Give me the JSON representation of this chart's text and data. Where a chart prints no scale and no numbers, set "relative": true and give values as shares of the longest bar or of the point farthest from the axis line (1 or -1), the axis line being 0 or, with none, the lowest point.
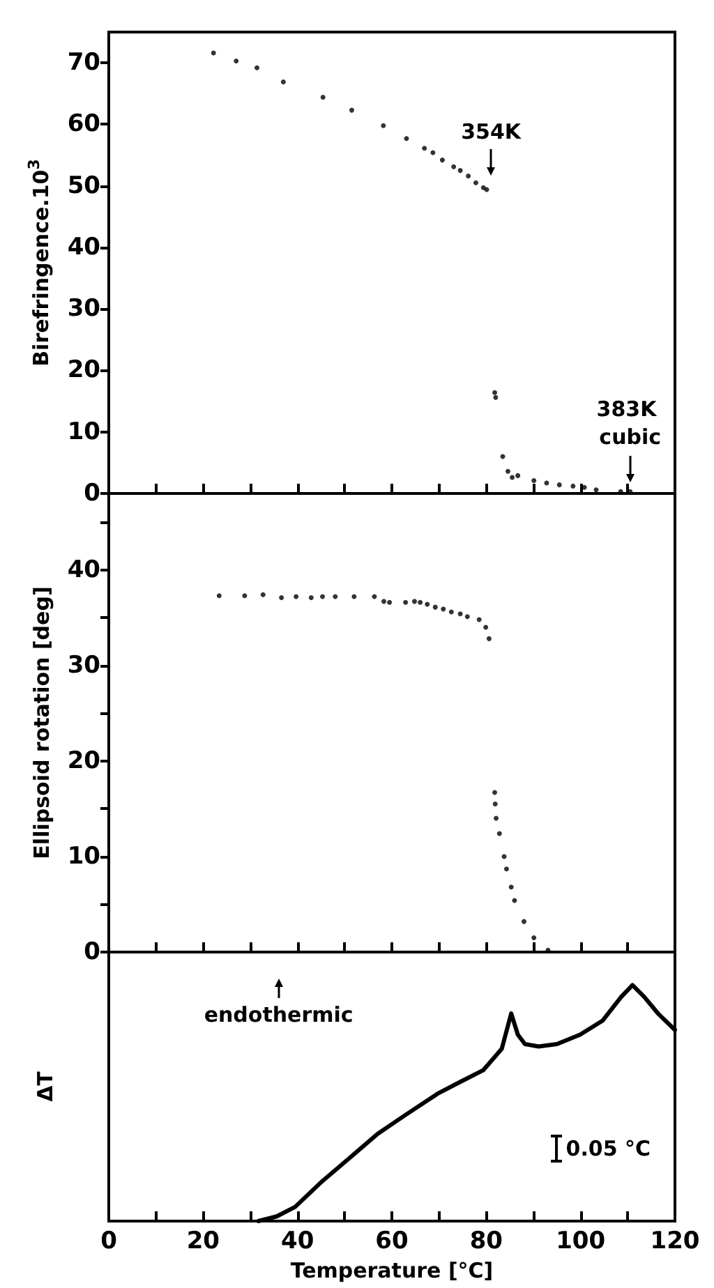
{
  "chart_data": [
    {
      "type": "scatter",
      "ylabel": "Birefringence.10$^{3}$",
      "marker": "circle",
      "grid": false,
      "tick_labels": "y",
      "xlim": [
        0,
        120
      ],
      "xticks": [
        0,
        10,
        20,
        30,
        40,
        50,
        60,
        70,
        80,
        90,
        100,
        110,
        120
      ],
      "ylim": [
        0,
        75
      ],
      "yticks": [
        0,
        10,
        20,
        30,
        40,
        50,
        60,
        70
      ],
      "x": [
        22.2,
        27,
        31.4,
        37,
        45.4,
        51.5,
        58.2,
        63.1,
        66.9,
        68.7,
        70.7,
        73.1,
        74.5,
        76.2,
        77.8,
        79.4,
        80.1,
        81.8,
        82,
        83.5,
        84.6,
        85.5,
        86.7,
        90.1,
        92.8,
        95.5,
        98.4,
        100.8,
        103.3,
        108.5,
        110.5
      ],
      "series": [
        {
          "color": "#000000",
          "values": [
            71.6,
            70.3,
            69.2,
            66.9,
            64.4,
            62.3,
            59.8,
            57.7,
            56.1,
            55.4,
            54.2,
            53.1,
            52.5,
            51.6,
            50.5,
            49.7,
            49.4,
            16.4,
            15.6,
            6.0,
            3.6,
            2.6,
            2.9,
            2.1,
            1.7,
            1.4,
            1.2,
            1.0,
            0.6,
            0.3,
            0.3
          ]
        }
      ],
      "annotations": [
        {
          "text": "354K",
          "x": 81,
          "y": 50
        },
        {
          "text": "383K cubic",
          "x": 110.5,
          "y": 0.3
        }
      ]
    },
    {
      "type": "scatter",
      "ylabel": "Ellipsoid rotation [deg]",
      "marker": "circle",
      "grid": false,
      "tick_labels": "y",
      "xlim": [
        0,
        120
      ],
      "xticks": [
        0,
        10,
        20,
        30,
        40,
        50,
        60,
        70,
        80,
        90,
        100,
        110,
        120
      ],
      "ylim": [
        0,
        48
      ],
      "yticks": [
        0,
        {
          "value": 5,
          "label": null
        },
        10,
        {
          "value": 15,
          "label": null
        },
        20,
        {
          "value": 25,
          "label": null
        },
        30,
        {
          "value": 35,
          "label": null
        },
        40,
        {
          "value": 45,
          "label": null
        }
      ],
      "x": [
        23.4,
        28.8,
        32.7,
        36.6,
        39.7,
        42.9,
        45.3,
        48,
        52,
        56.3,
        58.3,
        59.5,
        62.9,
        64.8,
        66,
        67.5,
        69.2,
        70.9,
        72.6,
        74.5,
        76,
        78.5,
        79.9,
        80.6,
        81.8,
        81.9,
        82.1,
        82.8,
        83.8,
        84.3,
        85.3,
        86,
        88,
        90.1,
        93.1
      ],
      "series": [
        {
          "color": "#000000",
          "values": [
            37.3,
            37.3,
            37.4,
            37.1,
            37.2,
            37.1,
            37.2,
            37.2,
            37.2,
            37.2,
            36.7,
            36.6,
            36.6,
            36.7,
            36.6,
            36.4,
            36.1,
            35.9,
            35.6,
            35.4,
            35.1,
            34.8,
            34,
            32.8,
            16.7,
            15.5,
            14,
            12.4,
            10,
            8.7,
            6.8,
            5.4,
            3.2,
            1.5,
            0.2
          ]
        }
      ]
    },
    {
      "type": "line",
      "relative": true,
      "xlabel": "Temperature [°C]",
      "ylabel": "ΔT",
      "marker": "none",
      "line_style": "solid",
      "grid": false,
      "tick_labels": "x",
      "xlim": [
        0,
        120
      ],
      "xticks": [
        0,
        {
          "value": 10,
          "label": null
        },
        20,
        {
          "value": 30,
          "label": null
        },
        40,
        {
          "value": 50,
          "label": null
        },
        60,
        {
          "value": 70,
          "label": null
        },
        80,
        {
          "value": 90,
          "label": null
        },
        100,
        {
          "value": 110,
          "label": null
        },
        120
      ],
      "x": [
        31.7,
        35.6,
        39.5,
        45.3,
        51.2,
        57,
        62.9,
        69.7,
        74.5,
        79.4,
        83.3,
        85.3,
        86.7,
        88.2,
        91.1,
        95,
        99.9,
        104.7,
        108.6,
        111,
        113.5,
        116.4,
        120
      ],
      "series": [
        {
          "color": "#000000",
          "values": [
            0,
            0.02,
            0.06,
            0.17,
            0.27,
            0.37,
            0.45,
            0.54,
            0.59,
            0.64,
            0.73,
            0.88,
            0.79,
            0.75,
            0.74,
            0.75,
            0.79,
            0.85,
            0.95,
            1,
            0.95,
            0.88,
            0.81
          ]
        }
      ],
      "annotations": [
        "endothermic",
        "0.05 °C"
      ]
    }
  ]
}
